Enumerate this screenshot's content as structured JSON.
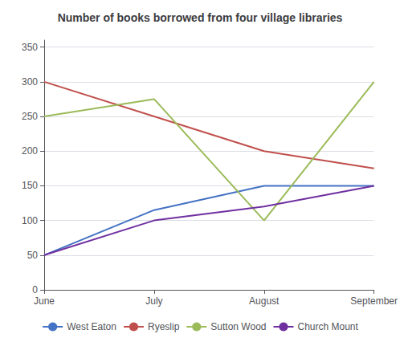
{
  "chart_data": {
    "type": "line",
    "title": "Number of books borrowed from four village libraries",
    "categories": [
      "June",
      "July",
      "August",
      "September"
    ],
    "series": [
      {
        "name": "West Eaton",
        "color": "#4472C4",
        "values": [
          50,
          115,
          150,
          150
        ]
      },
      {
        "name": "Ryeslip",
        "color": "#C0504D",
        "values": [
          300,
          250,
          200,
          175
        ]
      },
      {
        "name": "Sutton Wood",
        "color": "#9BBB59",
        "values": [
          250,
          275,
          100,
          300
        ]
      },
      {
        "name": "Church Mount",
        "color": "#7030A0",
        "values": [
          50,
          100,
          120,
          150
        ]
      }
    ],
    "ylim": [
      0,
      360
    ],
    "yticks": [
      0,
      50,
      100,
      150,
      200,
      250,
      300,
      350
    ],
    "grid": true,
    "legend": "bottom"
  }
}
